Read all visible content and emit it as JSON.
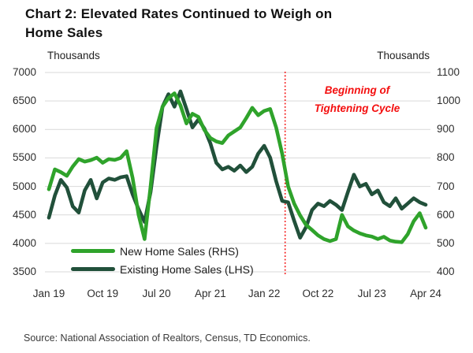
{
  "title": {
    "full": "Chart 2: Elevated Rates Continued to Weigh on Home Sales",
    "line1": "Chart 2: Elevated Rates Continued to Weigh on",
    "line2": "Home Sales"
  },
  "axes": {
    "left_unit": "Thousands",
    "right_unit": "Thousands",
    "left_ticks": [
      "7000",
      "6500",
      "6000",
      "5500",
      "5000",
      "4500",
      "4000",
      "3500"
    ],
    "right_ticks": [
      "1100",
      "1000",
      "900",
      "800",
      "700",
      "600",
      "500",
      "400"
    ],
    "x_ticks": [
      "Jan 19",
      "Oct 19",
      "Jul 20",
      "Apr 21",
      "Jan 22",
      "Oct 22",
      "Jul 23",
      "Apr 24"
    ]
  },
  "annotation": {
    "line1": "Beginning of",
    "line2": "Tightening Cycle",
    "color": "#f40f0f",
    "month_index": 39.5
  },
  "legend": [
    {
      "label": "New Home Sales (RHS)",
      "color": "#2fa32b"
    },
    {
      "label": "Existing Home Sales (LHS)",
      "color": "#21503a"
    }
  ],
  "source": "Source: National Association of Realtors, Census, TD Economics.",
  "colors": {
    "grid": "#d9d9d9",
    "new_home_sales": "#2fa32b",
    "existing_home_sales": "#21503a"
  },
  "chart_data": {
    "type": "line",
    "title": "Chart 2: Elevated Rates Continued to Weigh on Home Sales",
    "frequency": "monthly",
    "x_start": "Jan 2019",
    "x_end": "Apr 2024",
    "x_tick_labels": [
      "Jan 19",
      "Oct 19",
      "Jul 20",
      "Apr 21",
      "Jan 22",
      "Oct 22",
      "Jul 23",
      "Apr 24"
    ],
    "left_axis": {
      "label": "Thousands",
      "range": [
        3500,
        7000
      ],
      "tick_step": 500
    },
    "right_axis": {
      "label": "Thousands",
      "range": [
        400,
        1100
      ],
      "tick_step": 100
    },
    "grid": true,
    "legend_position": "bottom-left-inside",
    "annotation_vline": {
      "text": "Beginning of Tightening Cycle",
      "at_month": "Apr 2022",
      "style": "red-dotted"
    },
    "series": [
      {
        "name": "New Home Sales (RHS)",
        "axis": "right",
        "color": "#2fa32b",
        "values": [
          690,
          760,
          750,
          737,
          770,
          796,
          787,
          792,
          801,
          783,
          796,
          793,
          800,
          824,
          730,
          600,
          515,
          700,
          905,
          980,
          1010,
          1027,
          985,
          921,
          955,
          944,
          898,
          870,
          858,
          852,
          879,
          893,
          907,
          940,
          976,
          950,
          965,
          972,
          907,
          815,
          700,
          640,
          598,
          565,
          547,
          528,
          515,
          508,
          515,
          600,
          560,
          545,
          535,
          528,
          524,
          515,
          523,
          510,
          506,
          504,
          532,
          578,
          606,
          555
        ]
      },
      {
        "name": "Existing Home Sales (LHS)",
        "axis": "left",
        "color": "#21503a",
        "values": [
          4450,
          4840,
          5115,
          4980,
          4650,
          4540,
          4930,
          5115,
          4790,
          5070,
          5140,
          5115,
          5160,
          5180,
          4860,
          4600,
          4376,
          4900,
          5700,
          6400,
          6620,
          6400,
          6670,
          6359,
          6036,
          6174,
          6013,
          5759,
          5413,
          5298,
          5344,
          5275,
          5367,
          5252,
          5344,
          5575,
          5713,
          5506,
          5091,
          4745,
          4722,
          4399,
          4099,
          4284,
          4584,
          4699,
          4653,
          4745,
          4677,
          4584,
          4900,
          5206,
          4998,
          5045,
          4860,
          4929,
          4722,
          4653,
          4792,
          4608,
          4700,
          4792,
          4721,
          4677
        ]
      }
    ]
  }
}
